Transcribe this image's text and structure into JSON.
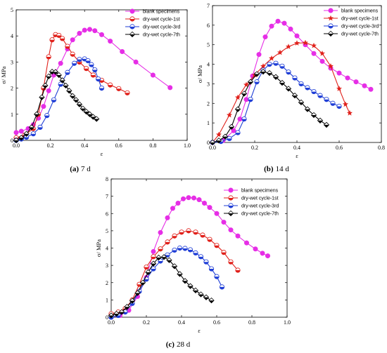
{
  "chart_data": [
    {
      "type": "line",
      "caption_letter": "(a)",
      "caption_text": "7 d",
      "xlabel": "ε",
      "ylabel": "σ/ MPa",
      "xlim": [
        0,
        1.0
      ],
      "ylim": [
        0,
        5
      ],
      "xticks": [
        "0.0",
        "0.2",
        "0.4",
        "0.6",
        "0.8",
        "1.0"
      ],
      "yticks": [
        "0",
        "1",
        "2",
        "3",
        "4",
        "5"
      ],
      "legend_position": "top-right",
      "series": [
        {
          "name": "blank specimens",
          "color": "#e62ee6",
          "marker": "circle-fill",
          "x": [
            0.0,
            0.03,
            0.07,
            0.1,
            0.13,
            0.16,
            0.19,
            0.22,
            0.26,
            0.3,
            0.33,
            0.37,
            0.4,
            0.43,
            0.46,
            0.5,
            0.55,
            0.62,
            0.7,
            0.8,
            0.9
          ],
          "y": [
            0.3,
            0.35,
            0.45,
            0.6,
            0.85,
            1.3,
            1.9,
            2.5,
            2.95,
            3.5,
            3.85,
            4.1,
            4.22,
            4.25,
            4.2,
            4.05,
            3.8,
            3.4,
            3.0,
            2.5,
            2.02
          ]
        },
        {
          "name": "dry-wet cycle-1st",
          "color": "#e0201a",
          "marker": "circle-half",
          "x": [
            0.0,
            0.05,
            0.1,
            0.13,
            0.16,
            0.19,
            0.21,
            0.23,
            0.25,
            0.27,
            0.3,
            0.33,
            0.37,
            0.41,
            0.45,
            0.5,
            0.55,
            0.6,
            0.65
          ],
          "y": [
            0.1,
            0.2,
            0.45,
            1.0,
            2.0,
            3.2,
            3.85,
            4.05,
            4.02,
            3.9,
            3.6,
            3.3,
            3.0,
            2.75,
            2.5,
            2.3,
            2.12,
            1.98,
            1.82
          ]
        },
        {
          "name": "dry-wet cycle-3rd",
          "color": "#1f3ed6",
          "marker": "circle-half",
          "x": [
            0.0,
            0.03,
            0.06,
            0.1,
            0.14,
            0.18,
            0.22,
            0.26,
            0.3,
            0.34,
            0.37,
            0.4,
            0.42,
            0.44,
            0.46,
            0.48,
            0.5
          ],
          "y": [
            0.0,
            0.05,
            0.12,
            0.25,
            0.5,
            0.95,
            1.55,
            2.15,
            2.6,
            2.95,
            3.1,
            3.12,
            3.05,
            2.9,
            2.7,
            2.35,
            2.0
          ]
        },
        {
          "name": "dry-wet cycle-7th",
          "color": "#000000",
          "marker": "diamond-half",
          "x": [
            0.0,
            0.03,
            0.06,
            0.09,
            0.12,
            0.15,
            0.17,
            0.19,
            0.21,
            0.23,
            0.25,
            0.27,
            0.29,
            0.31,
            0.33,
            0.35,
            0.37,
            0.39,
            0.41,
            0.43,
            0.45,
            0.47
          ],
          "y": [
            0.0,
            0.1,
            0.25,
            0.5,
            1.0,
            1.65,
            2.1,
            2.45,
            2.63,
            2.62,
            2.5,
            2.3,
            2.1,
            1.9,
            1.7,
            1.55,
            1.38,
            1.22,
            1.1,
            1.0,
            0.9,
            0.82
          ]
        }
      ]
    },
    {
      "type": "line",
      "caption_letter": "(b)",
      "caption_text": "14 d",
      "xlabel": "ε",
      "ylabel": "σ/ MPa",
      "xlim": [
        0,
        0.8
      ],
      "ylim": [
        0,
        7
      ],
      "xticks": [
        "0.0",
        "0.2",
        "0.4",
        "0.6",
        "0.8"
      ],
      "yticks": [
        "0",
        "1",
        "2",
        "3",
        "4",
        "5",
        "6",
        "7"
      ],
      "legend_position": "top-right",
      "series": [
        {
          "name": "blank specimens",
          "color": "#e62ee6",
          "marker": "circle-fill",
          "x": [
            0.0,
            0.05,
            0.1,
            0.13,
            0.16,
            0.19,
            0.22,
            0.25,
            0.28,
            0.31,
            0.34,
            0.37,
            0.4,
            0.44,
            0.48,
            0.52,
            0.56,
            0.6,
            0.64,
            0.68,
            0.72,
            0.75
          ],
          "y": [
            0.0,
            0.1,
            0.6,
            1.2,
            2.2,
            3.4,
            4.5,
            5.4,
            5.95,
            6.2,
            6.1,
            5.8,
            5.45,
            5.0,
            4.55,
            4.15,
            3.8,
            3.55,
            3.3,
            3.1,
            2.9,
            2.72
          ]
        },
        {
          "name": "dry-wet cycle-1st",
          "color": "#e0201a",
          "marker": "star",
          "x": [
            0.0,
            0.03,
            0.08,
            0.12,
            0.16,
            0.2,
            0.24,
            0.28,
            0.32,
            0.36,
            0.4,
            0.44,
            0.48,
            0.52,
            0.56,
            0.6,
            0.63,
            0.65
          ],
          "y": [
            0.0,
            0.4,
            1.4,
            2.3,
            2.95,
            3.45,
            3.9,
            4.3,
            4.6,
            4.9,
            5.08,
            5.1,
            4.95,
            4.55,
            3.9,
            2.75,
            1.95,
            1.5
          ]
        },
        {
          "name": "dry-wet cycle-3rd",
          "color": "#1f3ed6",
          "marker": "circle-half",
          "x": [
            0.0,
            0.04,
            0.08,
            0.12,
            0.15,
            0.18,
            0.21,
            0.24,
            0.27,
            0.3,
            0.33,
            0.36,
            0.39,
            0.42,
            0.45,
            0.48,
            0.51,
            0.54,
            0.57,
            0.6
          ],
          "y": [
            0.0,
            0.05,
            0.2,
            0.5,
            1.2,
            2.2,
            3.1,
            3.7,
            4.0,
            4.05,
            3.9,
            3.6,
            3.3,
            3.0,
            2.8,
            2.6,
            2.4,
            2.2,
            2.0,
            1.85
          ]
        },
        {
          "name": "dry-wet cycle-7th",
          "color": "#000000",
          "marker": "diamond-half",
          "x": [
            0.0,
            0.03,
            0.06,
            0.09,
            0.12,
            0.15,
            0.18,
            0.21,
            0.24,
            0.27,
            0.3,
            0.33,
            0.36,
            0.39,
            0.42,
            0.45,
            0.48,
            0.51,
            0.54
          ],
          "y": [
            0.0,
            0.1,
            0.3,
            0.8,
            1.7,
            2.5,
            3.1,
            3.5,
            3.62,
            3.55,
            3.35,
            3.05,
            2.75,
            2.4,
            2.05,
            1.7,
            1.4,
            1.12,
            0.9
          ]
        }
      ]
    },
    {
      "type": "line",
      "caption_letter": "(c)",
      "caption_text": "28 d",
      "xlabel": "ε",
      "ylabel": "σ/ MPa",
      "xlim": [
        0,
        1.0
      ],
      "ylim": [
        0,
        8
      ],
      "xticks": [
        "0.0",
        "0.2",
        "0.4",
        "0.6",
        "0.8",
        "1.0"
      ],
      "yticks": [
        "0",
        "1",
        "2",
        "3",
        "4",
        "5",
        "6",
        "7",
        "8"
      ],
      "legend_position": "top-right",
      "series": [
        {
          "name": "blank specimens",
          "color": "#e62ee6",
          "marker": "circle-fill",
          "x": [
            0.0,
            0.05,
            0.1,
            0.15,
            0.2,
            0.24,
            0.28,
            0.32,
            0.35,
            0.38,
            0.41,
            0.44,
            0.47,
            0.5,
            0.53,
            0.56,
            0.6,
            0.64,
            0.68,
            0.72,
            0.77,
            0.82,
            0.86,
            0.89
          ],
          "y": [
            0.0,
            0.1,
            0.4,
            1.2,
            2.3,
            3.8,
            4.9,
            5.75,
            6.3,
            6.6,
            6.85,
            6.92,
            6.9,
            6.8,
            6.6,
            6.35,
            6.0,
            5.5,
            5.05,
            4.7,
            4.3,
            3.95,
            3.7,
            3.55
          ]
        },
        {
          "name": "dry-wet cycle-1st",
          "color": "#e0201a",
          "marker": "circle-half",
          "x": [
            0.0,
            0.04,
            0.08,
            0.12,
            0.16,
            0.2,
            0.24,
            0.28,
            0.32,
            0.36,
            0.4,
            0.44,
            0.48,
            0.52,
            0.56,
            0.6,
            0.64,
            0.68,
            0.72
          ],
          "y": [
            0.2,
            0.3,
            0.5,
            1.0,
            1.9,
            2.9,
            3.5,
            3.95,
            4.35,
            4.7,
            4.92,
            5.0,
            4.92,
            4.75,
            4.5,
            4.15,
            3.75,
            3.2,
            2.72
          ]
        },
        {
          "name": "dry-wet cycle-3rd",
          "color": "#1f3ed6",
          "marker": "circle-half",
          "x": [
            0.0,
            0.04,
            0.08,
            0.12,
            0.16,
            0.2,
            0.24,
            0.28,
            0.32,
            0.36,
            0.39,
            0.42,
            0.45,
            0.48,
            0.51,
            0.54,
            0.57,
            0.6,
            0.63
          ],
          "y": [
            0.0,
            0.1,
            0.3,
            0.8,
            1.5,
            2.2,
            2.8,
            3.25,
            3.6,
            3.88,
            4.0,
            3.98,
            3.9,
            3.72,
            3.5,
            3.2,
            2.8,
            2.35,
            1.75
          ]
        },
        {
          "name": "dry-wet cycle-7th",
          "color": "#000000",
          "marker": "diamond-half",
          "x": [
            0.0,
            0.03,
            0.06,
            0.09,
            0.12,
            0.15,
            0.18,
            0.21,
            0.24,
            0.27,
            0.3,
            0.33,
            0.36,
            0.39,
            0.42,
            0.45,
            0.48,
            0.51,
            0.54,
            0.57
          ],
          "y": [
            0.1,
            0.2,
            0.3,
            0.6,
            0.95,
            1.4,
            2.0,
            2.6,
            3.1,
            3.45,
            3.48,
            3.3,
            2.95,
            2.5,
            2.1,
            1.8,
            1.55,
            1.32,
            1.15,
            0.97
          ]
        }
      ]
    }
  ]
}
